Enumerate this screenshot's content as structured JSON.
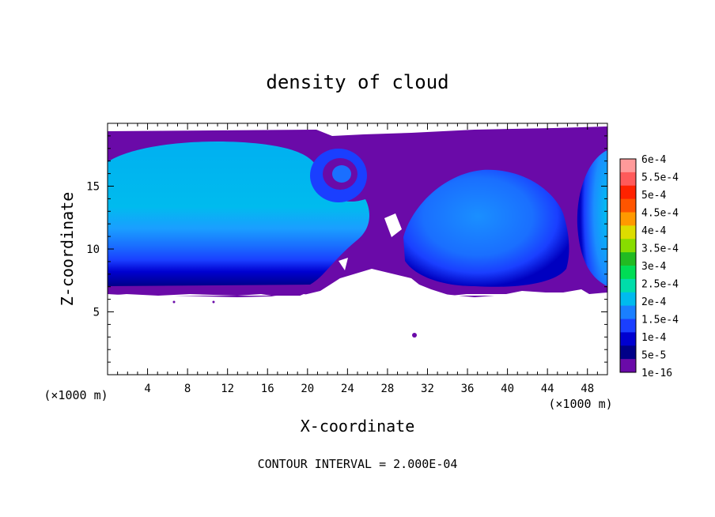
{
  "chart_data": {
    "type": "heatmap",
    "title": "density of cloud",
    "xlabel": "X-coordinate",
    "ylabel": "Z-coordinate",
    "x_unit_label": "(×1000 m)",
    "y_unit_label": "(×1000 m)",
    "xlim": [
      0,
      50
    ],
    "ylim": [
      0,
      20
    ],
    "x_ticks": [
      4,
      8,
      12,
      16,
      20,
      24,
      28,
      32,
      36,
      40,
      44,
      48
    ],
    "y_ticks": [
      5,
      10,
      15
    ],
    "grid": false,
    "legend_position": "right",
    "contour_interval_text": "CONTOUR INTERVAL = 2.000E-04",
    "colorbar": {
      "labels": [
        "6e-4",
        "5.5e-4",
        "5e-4",
        "4.5e-4",
        "4e-4",
        "3.5e-4",
        "3e-4",
        "2.5e-4",
        "2e-4",
        "1.5e-4",
        "1e-4",
        "5e-5",
        "1e-16"
      ],
      "colors": [
        "#ff9a9a",
        "#ff5a5a",
        "#ff2200",
        "#ff5500",
        "#ff9900",
        "#dddd00",
        "#88dd00",
        "#22bb22",
        "#00dd55",
        "#00ddaa",
        "#00bbee",
        "#1a7fff",
        "#1a3fff",
        "#0000d0",
        "#000088",
        "#6a0aa8"
      ],
      "value_min": 1e-16,
      "value_max": 0.0006
    },
    "features": [
      {
        "name": "left cloud mass",
        "x_range": [
          0,
          22
        ],
        "z_range": [
          6.3,
          19.6
        ],
        "peak_value": 0.00013
      },
      {
        "name": "vortex",
        "center_x": 22.5,
        "center_z": 15.8,
        "peak_value": 0.0001
      },
      {
        "name": "right cloud mass",
        "x_range": [
          30,
          46
        ],
        "z_range": [
          6.3,
          16.3
        ],
        "peak_value": 0.00012
      },
      {
        "name": "right edge mass",
        "x_range": [
          47,
          50
        ],
        "z_range": [
          6.3,
          17.8
        ],
        "peak_value": 0.00013
      },
      {
        "name": "isolated patch",
        "center_x": 30.8,
        "center_z": 3.2,
        "peak_value": 5e-05
      }
    ]
  }
}
